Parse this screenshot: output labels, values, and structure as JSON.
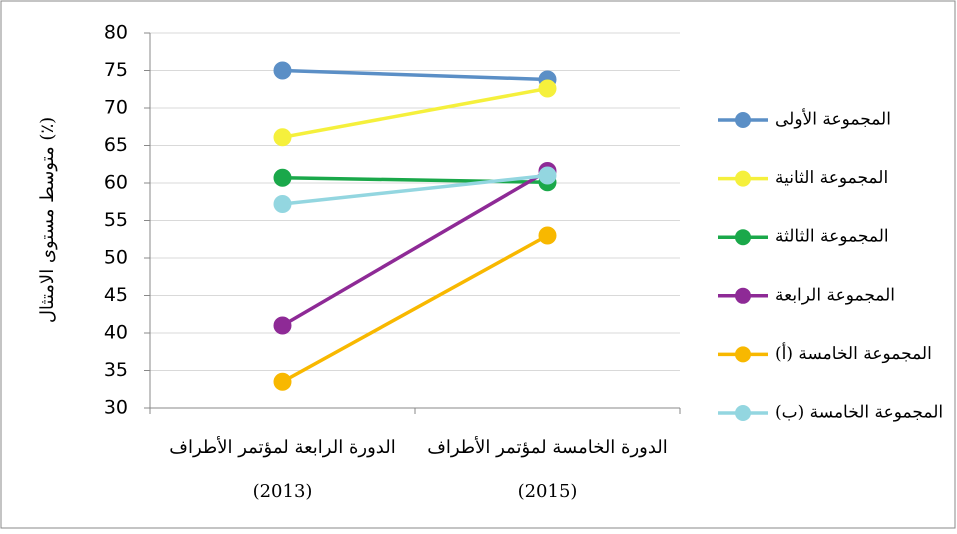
{
  "chart_data": {
    "type": "line",
    "y_label": "متوسط مستوى الامتثال (٪)",
    "categories": [
      "الدورة الرابعة لمؤتمر الأطراف\n(2013)",
      "الدورة الخامسة لمؤتمر الأطراف\n(2015)"
    ],
    "series": [
      {
        "name": "المجموعة الأولى",
        "color": "#5b8fc6",
        "values": [
          75,
          73.8
        ]
      },
      {
        "name": "المجموعة الثانية",
        "color": "#f5f03c",
        "values": [
          66.1,
          72.6
        ]
      },
      {
        "name": "المجموعة الثالثة",
        "color": "#1aa84a",
        "values": [
          60.7,
          60.1
        ]
      },
      {
        "name": "المجموعة الرابعة",
        "color": "#8e2a96",
        "values": [
          41,
          61.6
        ]
      },
      {
        "name": "المجموعة الخامسة (أ)",
        "color": "#f8b800",
        "values": [
          33.5,
          53
        ]
      },
      {
        "name": "المجموعة الخامسة (ب)",
        "color": "#93d6e0",
        "values": [
          57.2,
          61
        ]
      }
    ],
    "ylim": [
      30,
      80
    ],
    "yticks": [
      30,
      35,
      40,
      45,
      50,
      55,
      60,
      65,
      70,
      75,
      80
    ],
    "grid": true,
    "legend": "right"
  }
}
